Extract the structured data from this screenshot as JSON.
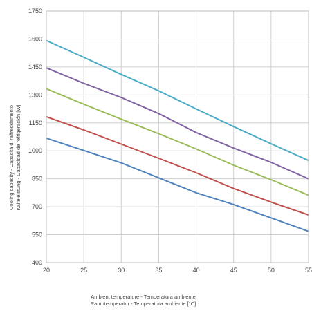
{
  "chart_data": {
    "type": "line",
    "title": "",
    "xlabel_lines": [
      "Ambient temperature - Temperatura ambiente",
      "Raumtemperatur - Temperatura ambiente [°C]"
    ],
    "ylabel_lines": [
      "Cooling capacity - Capacità di raffreddamento",
      "Kälteleistung - Capacidad de refrigeración [W]"
    ],
    "x": [
      20,
      25,
      30,
      35,
      40,
      45,
      50,
      55
    ],
    "xlim": [
      20,
      55
    ],
    "ylim": [
      400,
      1750
    ],
    "x_ticks": [
      "20",
      "25",
      "30",
      "35",
      "40",
      "45",
      "50",
      "55"
    ],
    "y_ticks": [
      "400",
      "550",
      "700",
      "850",
      "1000",
      "1150",
      "1300",
      "1450",
      "1600",
      "1750"
    ],
    "grid": true,
    "legend": "none",
    "series": [
      {
        "color": "#4bacc6",
        "values": [
          1592,
          1502,
          1410,
          1322,
          1225,
          1130,
          1038,
          948
        ]
      },
      {
        "color": "#8064a2",
        "values": [
          1445,
          1362,
          1286,
          1200,
          1098,
          1015,
          938,
          850
        ]
      },
      {
        "color": "#9bbb59",
        "values": [
          1333,
          1250,
          1170,
          1092,
          1010,
          923,
          845,
          762
        ]
      },
      {
        "color": "#c0504d",
        "values": [
          1183,
          1112,
          1036,
          960,
          882,
          798,
          725,
          656
        ]
      },
      {
        "color": "#4f81bd",
        "values": [
          1068,
          1002,
          935,
          855,
          775,
          712,
          640,
          568
        ]
      }
    ]
  }
}
